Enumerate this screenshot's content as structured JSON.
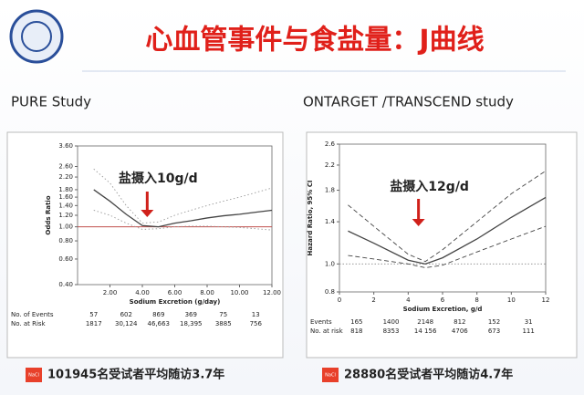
{
  "header": {
    "title": "心血管事件与食盐量：J曲线"
  },
  "chart_data": [
    {
      "type": "line",
      "study": "PURE Study",
      "xlabel": "Sodium Excretion (g/day)",
      "ylabel": "Odds Ratio",
      "log_y": true,
      "annotation": "盐摄入10g/d",
      "annotation_x": 4.3,
      "x": [
        1,
        2,
        3,
        4,
        5,
        6,
        7,
        8,
        9,
        10,
        11,
        12
      ],
      "series": [
        {
          "color": "#444444",
          "style": "solid",
          "values": [
            1.8,
            1.5,
            1.22,
            1.02,
            1.0,
            1.06,
            1.1,
            1.15,
            1.19,
            1.22,
            1.26,
            1.3
          ]
        },
        {
          "color": "#999999",
          "style": "dotted",
          "values": [
            2.5,
            2.0,
            1.4,
            1.06,
            1.08,
            1.2,
            1.3,
            1.4,
            1.5,
            1.6,
            1.72,
            1.85
          ]
        },
        {
          "color": "#999999",
          "style": "dotted",
          "values": [
            1.3,
            1.2,
            1.06,
            0.96,
            0.97,
            1.0,
            1.01,
            1.01,
            1.0,
            0.99,
            0.97,
            0.95
          ]
        }
      ],
      "reference": {
        "value": 1.0,
        "color": "#c0504d"
      },
      "xlim": [
        0,
        12
      ],
      "ylim": [
        0.4,
        3.6
      ],
      "xticks": [
        {
          "value": 2,
          "label": "2.00"
        },
        {
          "value": 4,
          "label": "4.00"
        },
        {
          "value": 6,
          "label": "6.00"
        },
        {
          "value": 8,
          "label": "8.00"
        },
        {
          "value": 10,
          "label": "10.00"
        },
        {
          "value": 12,
          "label": "12.00"
        }
      ],
      "yticks": [
        {
          "value": 0.4,
          "label": "0.40"
        },
        {
          "value": 0.6,
          "label": "0.60"
        },
        {
          "value": 0.8,
          "label": "0.80"
        },
        {
          "value": 1.0,
          "label": "1.00"
        },
        {
          "value": 1.2,
          "label": "1.20"
        },
        {
          "value": 1.4,
          "label": "1.40"
        },
        {
          "value": 1.6,
          "label": "1.60"
        },
        {
          "value": 1.8,
          "label": "1.80"
        },
        {
          "value": 2.2,
          "label": "2.20"
        },
        {
          "value": 2.6,
          "label": "2.60"
        },
        {
          "value": 3.6,
          "label": "3.60"
        }
      ],
      "table": {
        "row_labels": [
          "No. of Events",
          "No. at Risk"
        ],
        "rows": [
          [
            "57",
            "602",
            "869",
            "369",
            "75",
            "13"
          ],
          [
            "1817",
            "30,124",
            "46,663",
            "18,395",
            "3885",
            "756"
          ]
        ]
      },
      "footer": {
        "badge": "NaCl",
        "text": "101945名受试者平均随访3.7年"
      }
    },
    {
      "type": "line",
      "study": "ONTARGET /TRANSCEND study",
      "xlabel": "Sodium Excretion, g/d",
      "ylabel": "Hazard Ratio, 95% CI",
      "log_y": true,
      "annotation": "盐摄入12g/d",
      "annotation_x": 4.6,
      "x": [
        0.5,
        2,
        4,
        5,
        6,
        8,
        10,
        12
      ],
      "series": [
        {
          "color": "#444444",
          "style": "solid",
          "values": [
            1.3,
            1.18,
            1.03,
            1.0,
            1.05,
            1.22,
            1.45,
            1.7
          ]
        },
        {
          "color": "#444444",
          "style": "dashed",
          "values": [
            1.6,
            1.35,
            1.08,
            1.02,
            1.12,
            1.4,
            1.75,
            2.1
          ]
        },
        {
          "color": "#444444",
          "style": "dashed",
          "values": [
            1.07,
            1.04,
            1.0,
            0.97,
            0.99,
            1.1,
            1.22,
            1.35
          ]
        }
      ],
      "reference": {
        "value": 1.0,
        "color": "#999999"
      },
      "xlim": [
        0,
        12
      ],
      "ylim": [
        0.8,
        2.6
      ],
      "xticks": [
        0,
        2,
        4,
        6,
        8,
        10,
        12
      ],
      "yticks": [
        {
          "value": 0.8,
          "label": "0.8"
        },
        {
          "value": 1.0,
          "label": "1.0"
        },
        {
          "value": 1.4,
          "label": "1.4"
        },
        {
          "value": 1.8,
          "label": "1.8"
        },
        {
          "value": 2.2,
          "label": "2.2"
        },
        {
          "value": 2.6,
          "label": "2.6"
        }
      ],
      "table": {
        "row_labels": [
          "Events",
          "No. at risk"
        ],
        "rows": [
          [
            "165",
            "1400",
            "2148",
            "812",
            "152",
            "31"
          ],
          [
            "818",
            "8353",
            "14 156",
            "4706",
            "673",
            "111"
          ]
        ]
      },
      "footer": {
        "badge": "NaCl",
        "text": "28880名受试者平均随访4.7年"
      }
    }
  ]
}
